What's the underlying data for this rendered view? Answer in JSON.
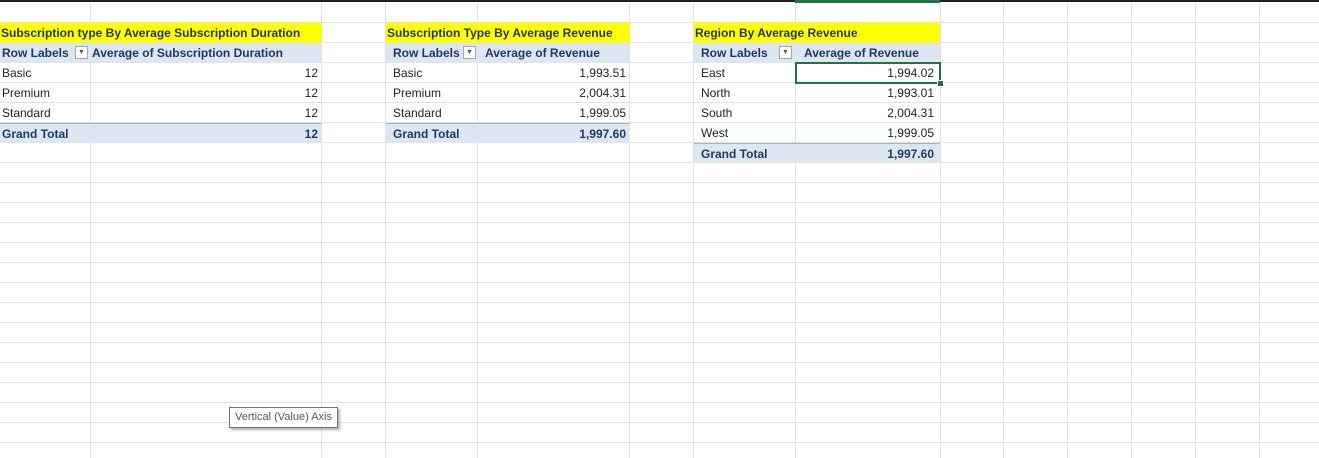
{
  "pivots": [
    {
      "title": "Subscription type By Average Subscription Duration",
      "row_labels_header": "Row Labels",
      "value_header": "Average of Subscription Duration",
      "rows": [
        {
          "label": "Basic",
          "value": "12"
        },
        {
          "label": "Premium",
          "value": "12"
        },
        {
          "label": "Standard",
          "value": "12"
        }
      ],
      "grand_total_label": "Grand Total",
      "grand_total_value": "12"
    },
    {
      "title": "Subscription Type By Average Revenue",
      "row_labels_header": "Row Labels",
      "value_header": "Average of Revenue",
      "rows": [
        {
          "label": "Basic",
          "value": "1,993.51"
        },
        {
          "label": "Premium",
          "value": "2,004.31"
        },
        {
          "label": "Standard",
          "value": "1,999.05"
        }
      ],
      "grand_total_label": "Grand Total",
      "grand_total_value": "1,997.60"
    },
    {
      "title": "Region By Average Revenue",
      "row_labels_header": "Row Labels",
      "value_header": "Average of Revenue",
      "rows": [
        {
          "label": "East",
          "value": "1,994.02"
        },
        {
          "label": "North",
          "value": "1,993.01"
        },
        {
          "label": "South",
          "value": "2,004.31"
        },
        {
          "label": "West",
          "value": "1,999.05"
        }
      ],
      "grand_total_label": "Grand Total",
      "grand_total_value": "1,997.60"
    }
  ],
  "tooltip": "Vertical (Value) Axis",
  "colors": {
    "title_fill": "#ffff00",
    "header_fill": "#dde7f1",
    "header_text": "#1f3864",
    "selection": "#217346",
    "gridline": "#e1e1e1"
  },
  "icons": {
    "filter_dropdown": "chevron-down-icon"
  }
}
